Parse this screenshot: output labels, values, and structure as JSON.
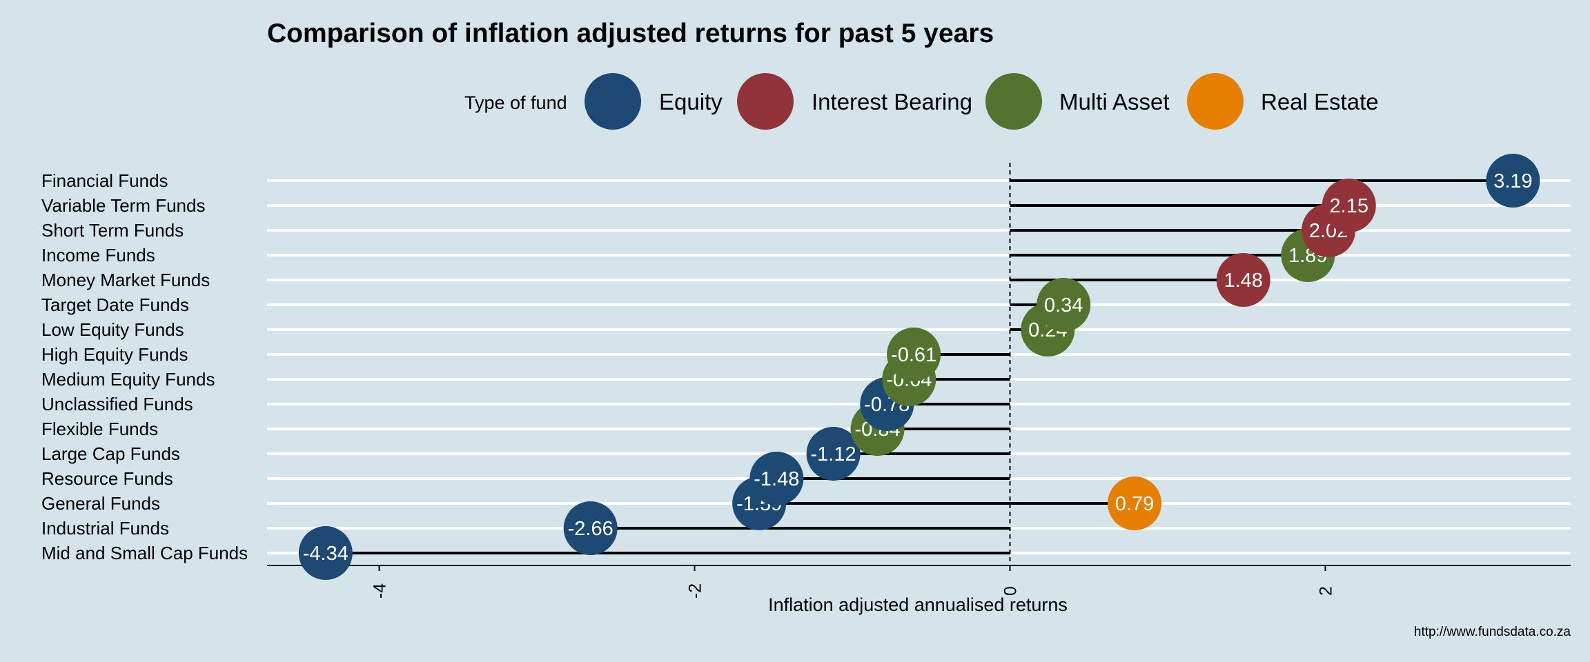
{
  "chart_data": {
    "type": "scatter",
    "title": "Comparison of inflation adjusted returns for past 5 years",
    "xlabel": "Inflation adjusted annualised returns",
    "legend": {
      "title": "Type of fund",
      "position": "top",
      "entries": [
        {
          "name": "Equity",
          "color": "#1c4a74"
        },
        {
          "name": "Interest Bearing",
          "color": "#923339"
        },
        {
          "name": "Multi Asset",
          "color": "#52742e"
        },
        {
          "name": "Real Estate",
          "color": "#e67e00"
        }
      ]
    },
    "xlim": [
      -4.7,
      3.6
    ],
    "xticks": [
      {
        "value": -4,
        "label": "-4"
      },
      {
        "value": -2,
        "label": "-2"
      },
      {
        "value": 0,
        "label": "0"
      },
      {
        "value": 2,
        "label": "2"
      }
    ],
    "categories": [
      "Financial Funds",
      "Variable Term Funds",
      "Short Term Funds",
      "Income Funds",
      "Money Market Funds",
      "Target Date Funds",
      "Low Equity Funds",
      "High Equity Funds",
      "Medium Equity Funds",
      "Unclassified Funds",
      "Flexible Funds",
      "Large Cap Funds",
      "Resource Funds",
      "General Funds",
      "Industrial Funds",
      "Mid and Small Cap Funds"
    ],
    "points": [
      {
        "category": "Financial Funds",
        "type": "Equity",
        "value": 3.19,
        "label": "3.19"
      },
      {
        "category": "Variable Term Funds",
        "type": "Interest Bearing",
        "value": 2.15,
        "label": "2.15"
      },
      {
        "category": "Short Term Funds",
        "type": "Interest Bearing",
        "value": 2.02,
        "label": "2.02"
      },
      {
        "category": "Income Funds",
        "type": "Multi Asset",
        "value": 1.89,
        "label": "1.89"
      },
      {
        "category": "Money Market Funds",
        "type": "Interest Bearing",
        "value": 1.48,
        "label": "1.48"
      },
      {
        "category": "Target Date Funds",
        "type": "Multi Asset",
        "value": 0.34,
        "label": "0.34"
      },
      {
        "category": "Low Equity Funds",
        "type": "Multi Asset",
        "value": 0.24,
        "label": "0.24"
      },
      {
        "category": "High Equity Funds",
        "type": "Multi Asset",
        "value": -0.61,
        "label": "-0.61"
      },
      {
        "category": "Medium Equity Funds",
        "type": "Multi Asset",
        "value": -0.64,
        "label": "-0.64"
      },
      {
        "category": "Unclassified Funds",
        "type": "Equity",
        "value": -0.78,
        "label": "-0.78"
      },
      {
        "category": "Flexible Funds",
        "type": "Multi Asset",
        "value": -0.84,
        "label": "-0.84"
      },
      {
        "category": "Large Cap Funds",
        "type": "Equity",
        "value": -1.12,
        "label": "-1.12"
      },
      {
        "category": "Resource Funds",
        "type": "Equity",
        "value": -1.48,
        "label": "-1.48"
      },
      {
        "category": "General Funds",
        "type": "Equity",
        "value": -1.59,
        "label": "-1.59"
      },
      {
        "category": "General Funds",
        "type": "Real Estate",
        "value": 0.79,
        "label": "0.79"
      },
      {
        "category": "Industrial Funds",
        "type": "Equity",
        "value": -2.66,
        "label": "-2.66"
      },
      {
        "category": "Mid and Small Cap Funds",
        "type": "Equity",
        "value": -4.34,
        "label": "-4.34"
      }
    ],
    "reference_line": {
      "value": 0,
      "style": "dashed"
    },
    "grid": true,
    "background": "#d5e4eb"
  },
  "source_note": "http://www.fundsdata.co.za"
}
